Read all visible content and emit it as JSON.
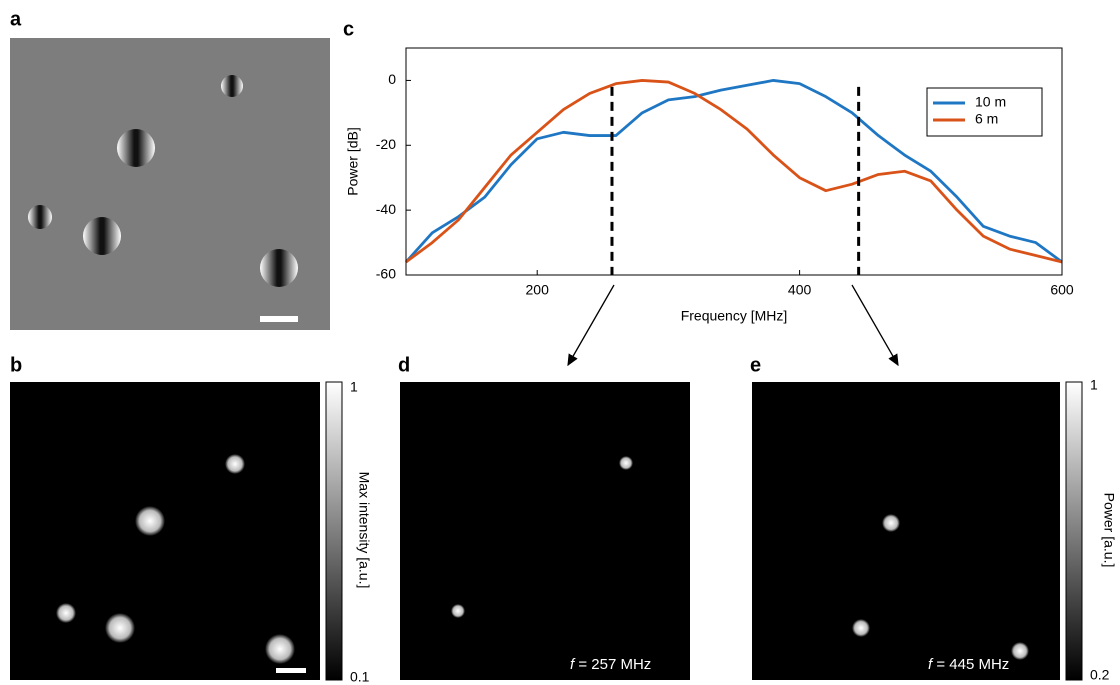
{
  "panels": {
    "a": "a",
    "b": "b",
    "c": "c",
    "d": "d",
    "e": "e"
  },
  "chart_data": {
    "type": "line",
    "xlabel": "Frequency [MHz]",
    "ylabel": "Power [dB]",
    "x": [
      100,
      120,
      140,
      160,
      180,
      200,
      220,
      240,
      260,
      280,
      300,
      320,
      340,
      360,
      380,
      400,
      420,
      440,
      460,
      480,
      500,
      520,
      540,
      560,
      580,
      600
    ],
    "series": [
      {
        "name": "10 m",
        "color": "#1f77c4",
        "values": [
          -56,
          -47,
          -42,
          -36,
          -26,
          -18,
          -16,
          -17,
          -17,
          -10,
          -6,
          -5,
          -3,
          -1.5,
          0,
          -1,
          -5,
          -10,
          -17,
          -23,
          -28,
          -36,
          -45,
          -48,
          -50,
          -56
        ]
      },
      {
        "name": "6 m",
        "color": "#d95319",
        "values": [
          -56,
          -50,
          -43,
          -33,
          -23,
          -16,
          -9,
          -4,
          -1,
          0,
          -0.5,
          -4,
          -9,
          -15,
          -23,
          -30,
          -34,
          -32,
          -29,
          -28,
          -31,
          -40,
          -48,
          -52,
          -54,
          -56
        ]
      }
    ],
    "xlim": [
      100,
      600
    ],
    "ylim": [
      -60,
      10
    ],
    "xticks": [
      200,
      400,
      600
    ],
    "yticks": [
      -60,
      -40,
      -20,
      0
    ],
    "vlines": [
      257,
      445
    ],
    "legend": "upper right",
    "grid": false
  },
  "colorbars": {
    "b": {
      "max": 1,
      "min": 0.1,
      "label": "Max intensity [a.u.]"
    },
    "e": {
      "max": 1,
      "min": 0.2,
      "label": "Power [a.u.]"
    }
  },
  "annotations": {
    "d": {
      "var": "f",
      "text": "= 257 MHz"
    },
    "e": {
      "var": "f",
      "text": "= 445 MHz"
    }
  }
}
